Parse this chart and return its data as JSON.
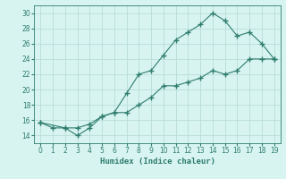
{
  "x": [
    0,
    1,
    2,
    3,
    4,
    5,
    6,
    7,
    8,
    9,
    10,
    11,
    12,
    13,
    14,
    15,
    16,
    17,
    18,
    19
  ],
  "line1": [
    15.7,
    15.0,
    15.0,
    14.0,
    15.0,
    16.5,
    17.0,
    19.5,
    22.0,
    22.5,
    24.5,
    26.5,
    27.5,
    28.5,
    30.0,
    29.0,
    27.0,
    27.5,
    26.0,
    24.0
  ],
  "line2": [
    15.7,
    null,
    15.0,
    15.0,
    15.5,
    16.5,
    17.0,
    17.0,
    18.0,
    19.0,
    20.5,
    20.5,
    21.0,
    21.5,
    22.5,
    22.0,
    22.5,
    24.0,
    24.0,
    24.0
  ],
  "line_color": "#2e7d6e",
  "bg_color": "#d8f4f0",
  "grid_color": "#b8ddd8",
  "xlabel": "Humidex (Indice chaleur)",
  "ylim": [
    13,
    31
  ],
  "xlim": [
    -0.5,
    19.5
  ],
  "yticks": [
    14,
    16,
    18,
    20,
    22,
    24,
    26,
    28,
    30
  ],
  "xticks": [
    0,
    1,
    2,
    3,
    4,
    5,
    6,
    7,
    8,
    9,
    10,
    11,
    12,
    13,
    14,
    15,
    16,
    17,
    18,
    19
  ]
}
